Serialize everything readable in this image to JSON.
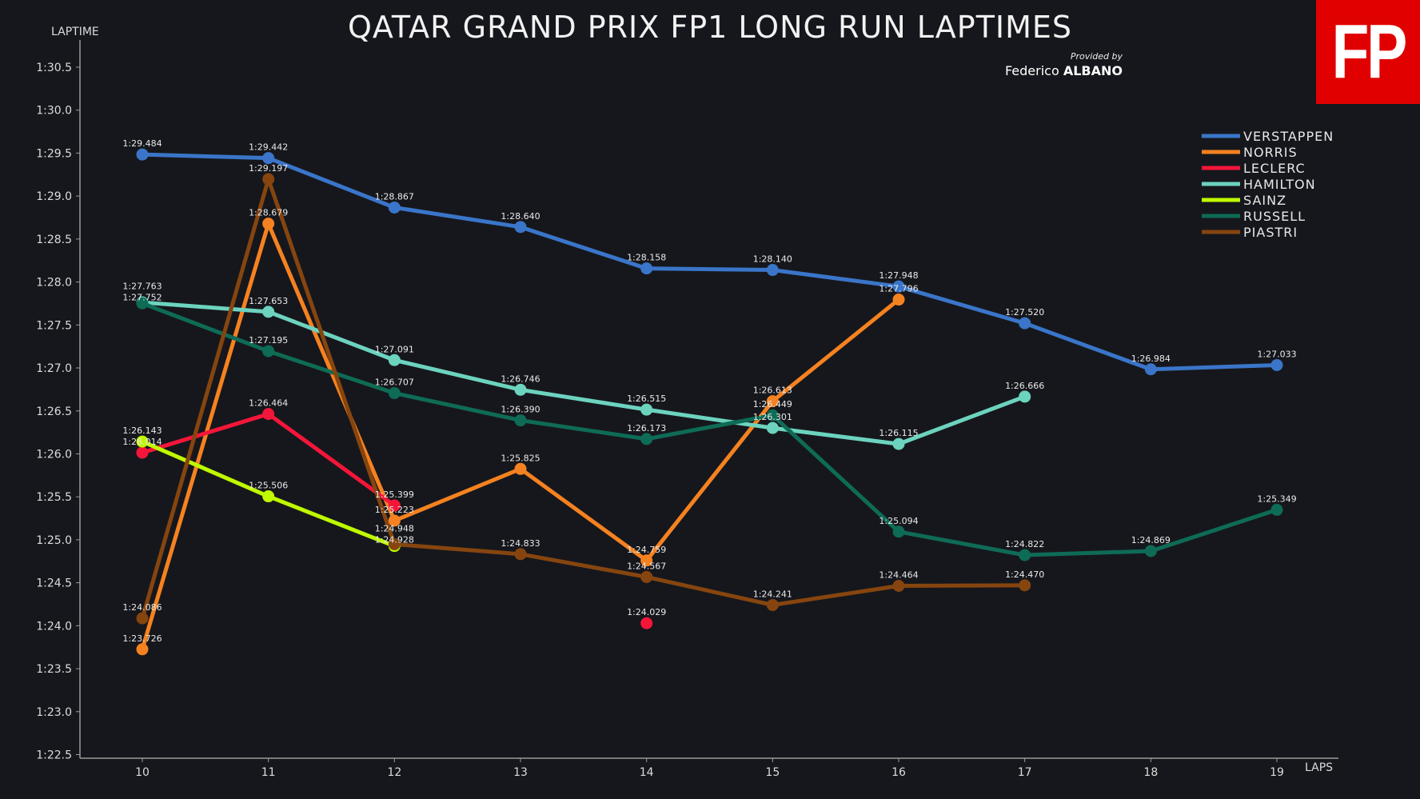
{
  "chart_data": {
    "type": "line",
    "title": "QATAR GRAND PRIX FP1 LONG RUN LAPTIMES",
    "xlabel": "LAPS",
    "ylabel": "LAPTIME",
    "x": [
      10,
      11,
      12,
      13,
      14,
      15,
      16,
      17,
      18,
      19
    ],
    "ylim": [
      "1:22.5",
      "1:30.5"
    ],
    "yticks": [
      "1:22.5",
      "1:23.0",
      "1:23.5",
      "1:24.0",
      "1:24.5",
      "1:25.0",
      "1:25.5",
      "1:26.0",
      "1:26.5",
      "1:27.0",
      "1:27.5",
      "1:28.0",
      "1:28.5",
      "1:29.0",
      "1:29.5",
      "1:30.0",
      "1:30.5"
    ],
    "legend_position": "top-right",
    "grid": false,
    "series": [
      {
        "name": "VERSTAPPEN",
        "color": "#3a75c9",
        "values": [
          "1:29.484",
          "1:29.442",
          "1:28.867",
          "1:28.640",
          "1:28.158",
          "1:28.140",
          "1:27.948",
          "1:27.520",
          "1:26.984",
          "1:27.033"
        ]
      },
      {
        "name": "NORRIS",
        "color": "#f58220",
        "values": [
          "1:23.726",
          "1:28.679",
          "1:25.223",
          "1:25.825",
          "1:24.759",
          "1:26.613",
          "1:27.796",
          null,
          null,
          null
        ]
      },
      {
        "name": "LECLERC",
        "color": "#f4163a",
        "values": [
          "1:26.014",
          "1:26.464",
          "1:25.399",
          null,
          "1:24.029",
          null,
          null,
          null,
          null,
          null
        ]
      },
      {
        "name": "HAMILTON",
        "color": "#6cd3bf",
        "values": [
          "1:27.763",
          "1:27.653",
          "1:27.091",
          "1:26.746",
          "1:26.515",
          "1:26.301",
          "1:26.115",
          "1:26.666",
          null,
          null
        ]
      },
      {
        "name": "SAINZ",
        "color": "#bff800",
        "values": [
          "1:26.143",
          "1:25.506",
          "1:24.928",
          null,
          null,
          null,
          null,
          null,
          null,
          null
        ]
      },
      {
        "name": "RUSSELL",
        "color": "#0e6b56",
        "values": [
          "1:27.752",
          "1:27.195",
          "1:26.707",
          "1:26.390",
          "1:26.173",
          "1:26.449",
          "1:25.094",
          "1:24.822",
          "1:24.869",
          "1:25.349"
        ]
      },
      {
        "name": "PIASTRI",
        "color": "#86450f",
        "values": [
          "1:24.086",
          "1:29.197",
          "1:24.948",
          "1:24.833",
          "1:24.567",
          "1:24.241",
          "1:24.464",
          "1:24.470",
          null,
          null
        ]
      }
    ]
  },
  "credit": {
    "provided_by": "Provided by",
    "first_name": "Federico",
    "last_name": "ALBANO"
  },
  "logo": {
    "text": "FP"
  }
}
